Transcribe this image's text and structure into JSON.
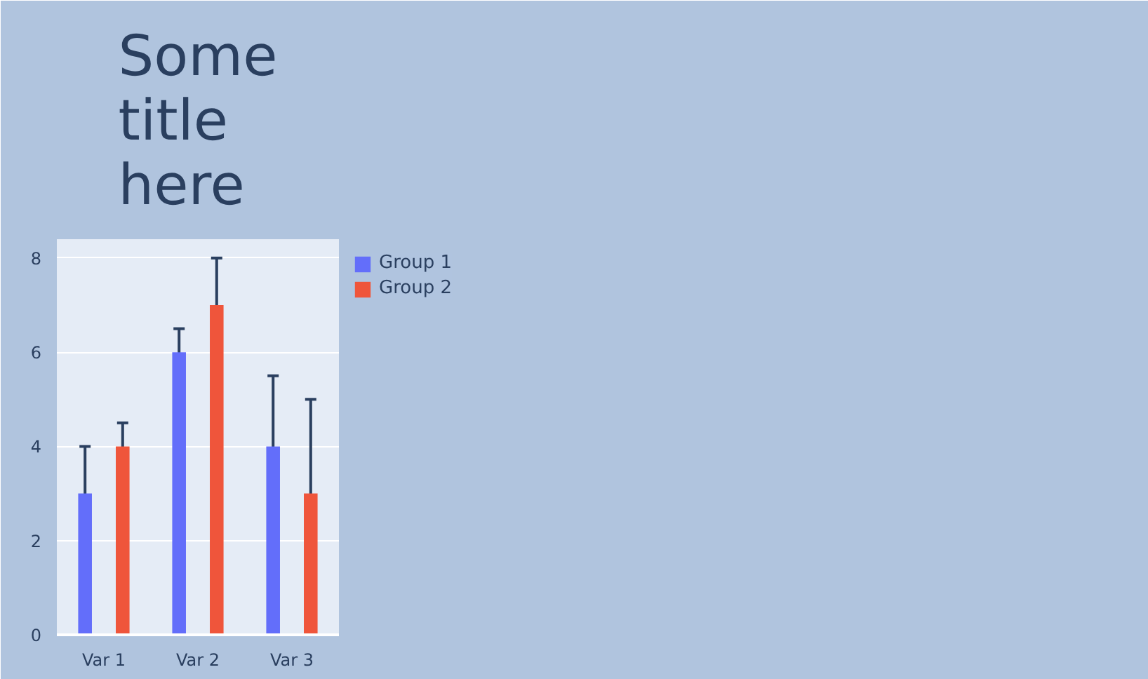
{
  "chart_data": {
    "type": "bar",
    "title": "Some\ntitle\nhere",
    "categories": [
      "Var 1",
      "Var 2",
      "Var 3"
    ],
    "series": [
      {
        "name": "Group 1",
        "color": "#636efa",
        "values": [
          3,
          6,
          4
        ],
        "errors": [
          1,
          0.5,
          1.5
        ]
      },
      {
        "name": "Group 2",
        "color": "#ef553b",
        "values": [
          4,
          7,
          3
        ],
        "errors": [
          0.5,
          1,
          2
        ]
      }
    ],
    "ylim": [
      0,
      8.4
    ],
    "yticks": [
      0,
      2,
      4,
      6,
      8
    ],
    "grid": "y",
    "legend": "top right"
  }
}
